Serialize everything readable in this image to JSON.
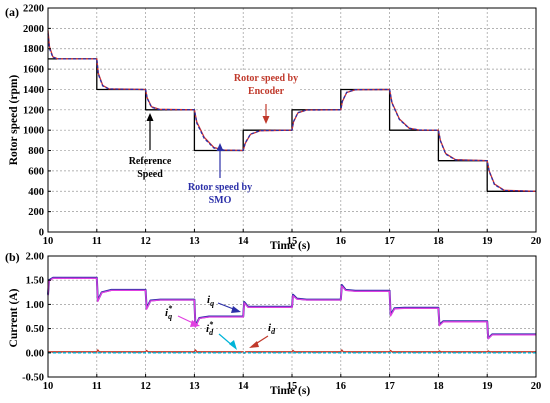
{
  "chart_data": [
    {
      "panel_label": "(a)",
      "type": "line",
      "xlabel": "Time (s)",
      "ylabel": "Rotor speed (rpm)",
      "xlim": [
        10,
        20
      ],
      "ylim": [
        0,
        2200
      ],
      "xticks": [
        "10",
        "11",
        "12",
        "13",
        "14",
        "15",
        "16",
        "17",
        "18",
        "19",
        "20"
      ],
      "yticks": [
        "0",
        "200",
        "400",
        "600",
        "800",
        "1000",
        "1200",
        "1400",
        "1600",
        "1800",
        "2000",
        "2200"
      ],
      "grid": true,
      "series": [
        {
          "key": "reference",
          "color": "#000000",
          "x": [
            10,
            11,
            11,
            12,
            12,
            13,
            13,
            14,
            14,
            15,
            15,
            16,
            16,
            17,
            17,
            18,
            18,
            19,
            19,
            20
          ],
          "y": [
            1700,
            1700,
            1400,
            1400,
            1200,
            1200,
            800,
            800,
            1000,
            1000,
            1200,
            1200,
            1400,
            1400,
            1000,
            1000,
            700,
            700,
            400,
            400
          ]
        },
        {
          "key": "encoder",
          "color": "#d4312b",
          "x": [
            10,
            10.03,
            10.1,
            10.2,
            11,
            11.03,
            11.12,
            11.25,
            12,
            12.03,
            12.12,
            12.28,
            13,
            13.05,
            13.2,
            13.4,
            13.6,
            14,
            14.04,
            14.15,
            14.35,
            15,
            15.03,
            15.12,
            15.3,
            16,
            16.03,
            16.12,
            16.3,
            17,
            17.05,
            17.2,
            17.4,
            17.6,
            18,
            18.04,
            18.15,
            18.35,
            19,
            19.04,
            19.15,
            19.35,
            20
          ],
          "y": [
            1980,
            1820,
            1720,
            1700,
            1700,
            1560,
            1440,
            1405,
            1400,
            1320,
            1230,
            1205,
            1200,
            1080,
            930,
            830,
            805,
            800,
            870,
            960,
            995,
            1000,
            1080,
            1170,
            1198,
            1200,
            1280,
            1370,
            1398,
            1400,
            1270,
            1110,
            1020,
            1002,
            1000,
            900,
            770,
            710,
            700,
            600,
            470,
            410,
            400
          ]
        },
        {
          "key": "smo",
          "color": "#2b2fa8",
          "x": [
            10,
            10.03,
            10.1,
            10.2,
            11,
            11.03,
            11.12,
            11.25,
            12,
            12.03,
            12.12,
            12.28,
            13,
            13.05,
            13.2,
            13.4,
            13.6,
            14,
            14.04,
            14.15,
            14.35,
            15,
            15.03,
            15.12,
            15.3,
            16,
            16.03,
            16.12,
            16.3,
            17,
            17.05,
            17.2,
            17.4,
            17.6,
            18,
            18.04,
            18.15,
            18.35,
            19,
            19.04,
            19.15,
            19.35,
            20
          ],
          "y": [
            1950,
            1800,
            1715,
            1700,
            1700,
            1550,
            1435,
            1404,
            1400,
            1315,
            1225,
            1203,
            1200,
            1070,
            920,
            825,
            804,
            800,
            875,
            962,
            996,
            1000,
            1085,
            1172,
            1198,
            1200,
            1285,
            1372,
            1398,
            1400,
            1265,
            1105,
            1018,
            1002,
            1000,
            895,
            765,
            708,
            700,
            595,
            465,
            408,
            400
          ]
        }
      ],
      "annotations": [
        {
          "text": "Reference",
          "color": "#000000"
        },
        {
          "text": "Speed",
          "color": "#000000"
        },
        {
          "text": "Rotor speed by",
          "color": "#2b2fa8"
        },
        {
          "text": "SMO",
          "color": "#2b2fa8"
        },
        {
          "text": "Rotor speed by",
          "color": "#c0392b"
        },
        {
          "text": "Encoder",
          "color": "#c0392b"
        }
      ]
    },
    {
      "panel_label": "(b)",
      "type": "line",
      "xlabel": "Time (s)",
      "ylabel": "Current (A)",
      "xlim": [
        10,
        20
      ],
      "ylim": [
        -0.5,
        2.0
      ],
      "xticks": [
        "10",
        "11",
        "12",
        "13",
        "14",
        "15",
        "16",
        "17",
        "18",
        "19",
        "20"
      ],
      "yticks": [
        "-0.50",
        "0.00",
        "0.50",
        "1.00",
        "1.50",
        "2.00"
      ],
      "grid": true,
      "series": [
        {
          "key": "iq",
          "color": "#2b2fa8",
          "x": [
            10,
            10.02,
            10.1,
            10.3,
            11,
            11.02,
            11.1,
            11.3,
            12,
            12.02,
            12.1,
            12.3,
            13,
            13.02,
            13.1,
            13.3,
            14,
            14.02,
            14.1,
            14.3,
            15,
            15.02,
            15.1,
            15.3,
            16,
            16.02,
            16.1,
            16.3,
            17,
            17.02,
            17.1,
            17.3,
            18,
            18.02,
            18.1,
            18.3,
            19,
            19.02,
            19.1,
            19.3,
            20
          ],
          "y": [
            1.2,
            1.5,
            1.55,
            1.55,
            1.55,
            1.08,
            1.25,
            1.3,
            1.3,
            0.92,
            1.08,
            1.1,
            1.1,
            0.55,
            0.72,
            0.75,
            0.75,
            1.05,
            0.95,
            0.95,
            0.95,
            1.2,
            1.12,
            1.1,
            1.1,
            1.4,
            1.3,
            1.28,
            1.28,
            0.78,
            0.92,
            0.93,
            0.93,
            0.58,
            0.65,
            0.65,
            0.65,
            0.3,
            0.38,
            0.38,
            0.38
          ]
        },
        {
          "key": "iq_ref",
          "color": "#e040e0",
          "x": [
            10,
            10.02,
            10.1,
            10.3,
            11,
            11.02,
            11.1,
            11.3,
            12,
            12.02,
            12.1,
            12.3,
            13,
            13.02,
            13.1,
            13.3,
            14,
            14.02,
            14.1,
            14.3,
            15,
            15.02,
            15.1,
            15.3,
            16,
            16.02,
            16.1,
            16.3,
            17,
            17.02,
            17.1,
            17.3,
            18,
            18.02,
            18.1,
            18.3,
            19,
            19.02,
            19.1,
            19.3,
            20
          ],
          "y": [
            1.18,
            1.48,
            1.54,
            1.54,
            1.54,
            1.06,
            1.24,
            1.29,
            1.29,
            0.9,
            1.07,
            1.09,
            1.09,
            0.53,
            0.71,
            0.74,
            0.74,
            1.03,
            0.94,
            0.94,
            0.94,
            1.18,
            1.11,
            1.09,
            1.09,
            1.38,
            1.29,
            1.27,
            1.27,
            0.76,
            0.91,
            0.92,
            0.92,
            0.56,
            0.64,
            0.64,
            0.64,
            0.29,
            0.37,
            0.37,
            0.37
          ]
        },
        {
          "key": "id",
          "color": "#c0392b",
          "x": [
            10,
            11,
            11.02,
            11.05,
            12,
            12.02,
            12.05,
            13,
            13.02,
            13.05,
            14,
            14.02,
            14.05,
            15,
            15.02,
            15.05,
            16,
            16.02,
            16.05,
            17,
            17.02,
            17.05,
            18,
            18.02,
            18.05,
            19,
            19.02,
            19.05,
            20
          ],
          "y": [
            0.02,
            0.02,
            0.06,
            0.02,
            0.02,
            0.05,
            0.02,
            0.02,
            0.06,
            0.02,
            0.02,
            -0.01,
            0.02,
            0.02,
            0.05,
            0.02,
            0.02,
            0.06,
            0.02,
            0.02,
            0.05,
            0.02,
            0.02,
            0.04,
            0.02,
            0.02,
            0.04,
            0.02,
            0.02
          ]
        },
        {
          "key": "id_ref",
          "color": "#00b4d8",
          "x": [
            10,
            20
          ],
          "y": [
            0.0,
            0.0
          ]
        }
      ],
      "annotations": [
        {
          "text": "i",
          "sub": "q",
          "color": "#000000"
        },
        {
          "text": "i",
          "sub": "q",
          "sup": "*",
          "color": "#000000"
        },
        {
          "text": "i",
          "sub": "d",
          "sup": "*",
          "color": "#000000"
        },
        {
          "text": "i",
          "sub": "d",
          "color": "#000000"
        }
      ]
    }
  ]
}
